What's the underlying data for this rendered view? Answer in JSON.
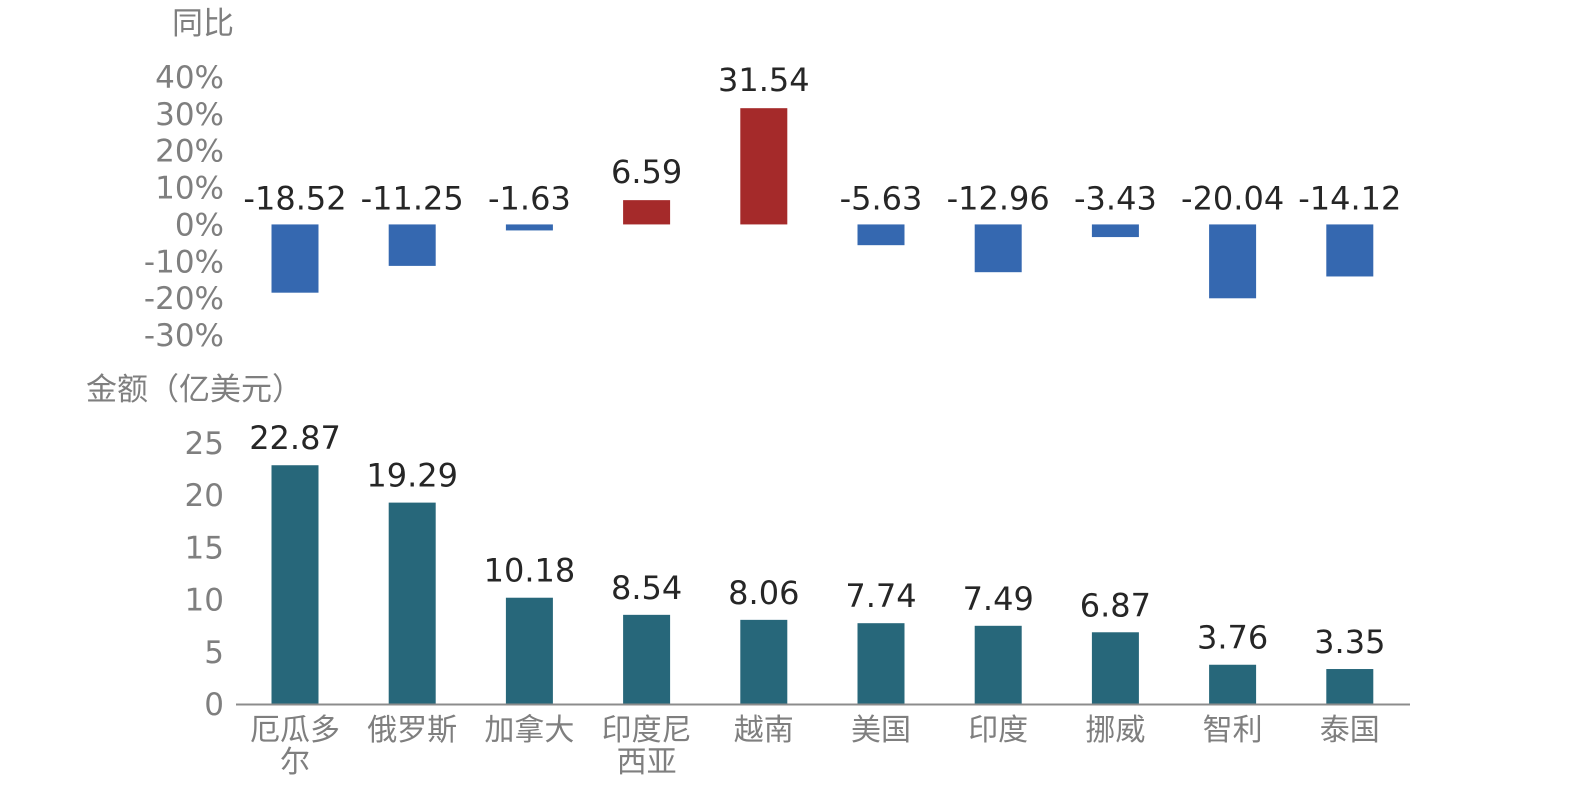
{
  "chart_data": [
    {
      "type": "bar",
      "ylabel": "同比",
      "ylim": [
        -30,
        40
      ],
      "yticks": [
        {
          "value": 40,
          "label": "40%"
        },
        {
          "value": 30,
          "label": "30%"
        },
        {
          "value": 20,
          "label": "20%"
        },
        {
          "value": 10,
          "label": "10%"
        },
        {
          "value": 0,
          "label": "0%"
        },
        {
          "value": -10,
          "label": "-10%"
        },
        {
          "value": -20,
          "label": "-20%"
        },
        {
          "value": -30,
          "label": "-30%"
        }
      ],
      "categories": [
        "厄瓜多尔",
        "俄罗斯",
        "加拿大",
        "印度尼西亚",
        "越南",
        "美国",
        "印度",
        "挪威",
        "智利",
        "泰国"
      ],
      "values": [
        -18.52,
        -11.25,
        -1.63,
        6.59,
        31.54,
        -5.63,
        -12.96,
        -3.43,
        -20.04,
        -14.12
      ],
      "value_labels": [
        "-18.52",
        "-11.25",
        "-1.63",
        "6.59",
        "31.54",
        "-5.63",
        "-12.96",
        "-3.43",
        "-20.04",
        "-14.12"
      ],
      "colors": {
        "positive": "#a52a2a",
        "negative": "#3568b0"
      },
      "grid": false
    },
    {
      "type": "bar",
      "ylabel": "金额（亿美元）",
      "ylim": [
        0,
        25
      ],
      "yticks": [
        {
          "value": 25,
          "label": "25"
        },
        {
          "value": 20,
          "label": "20"
        },
        {
          "value": 15,
          "label": "15"
        },
        {
          "value": 10,
          "label": "10"
        },
        {
          "value": 5,
          "label": "5"
        },
        {
          "value": 0,
          "label": "0"
        }
      ],
      "categories": [
        "厄瓜多尔",
        "俄罗斯",
        "加拿大",
        "印度尼西亚",
        "越南",
        "美国",
        "印度",
        "挪威",
        "智利",
        "泰国"
      ],
      "category_lines": [
        [
          "厄瓜多",
          "尔"
        ],
        [
          "俄罗斯"
        ],
        [
          "加拿大"
        ],
        [
          "印度尼",
          "西亚"
        ],
        [
          "越南"
        ],
        [
          "美国"
        ],
        [
          "印度"
        ],
        [
          "挪威"
        ],
        [
          "智利"
        ],
        [
          "泰国"
        ]
      ],
      "values": [
        22.87,
        19.29,
        10.18,
        8.54,
        8.06,
        7.74,
        7.49,
        6.87,
        3.76,
        3.35
      ],
      "value_labels": [
        "22.87",
        "19.29",
        "10.18",
        "8.54",
        "8.06",
        "7.74",
        "7.49",
        "6.87",
        "3.76",
        "3.35"
      ],
      "colors": {
        "bar": "#27677a",
        "axis": "#8c8c8c"
      },
      "grid": false
    }
  ]
}
